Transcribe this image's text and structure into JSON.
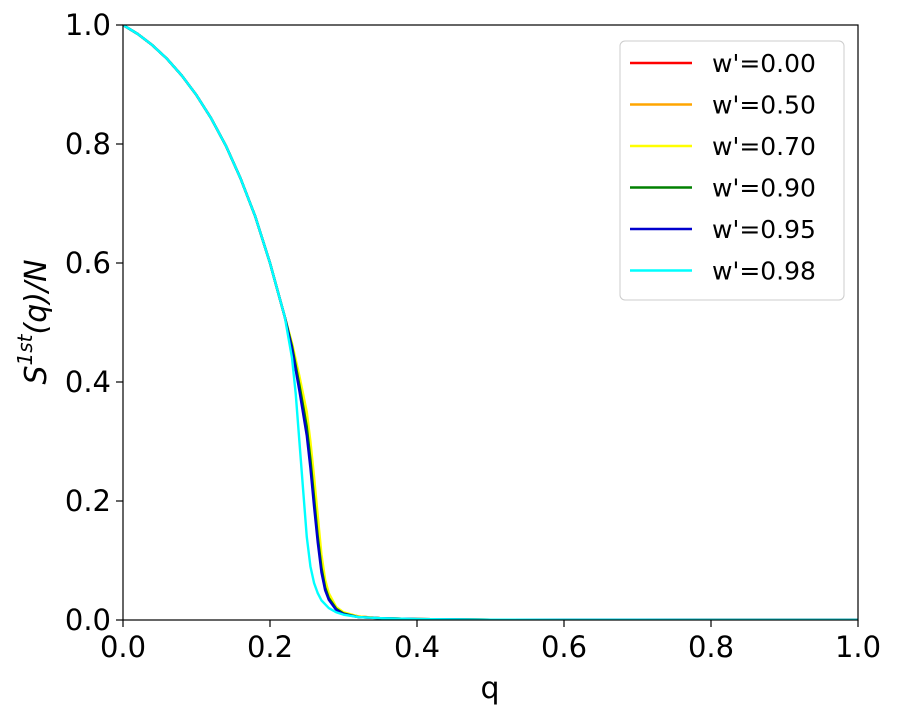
{
  "chart_data": {
    "type": "line",
    "xlabel": "q",
    "ylabel": {
      "base": "S",
      "sup": "1st",
      "rest": "(q)/N"
    },
    "xlim": [
      0.0,
      1.0
    ],
    "ylim": [
      0.0,
      1.0
    ],
    "xticks": [
      "0.0",
      "0.2",
      "0.4",
      "0.6",
      "0.8",
      "1.0"
    ],
    "yticks": [
      "0.0",
      "0.2",
      "0.4",
      "0.6",
      "0.8",
      "1.0"
    ],
    "grid": false,
    "legend_position": "top-right",
    "series": [
      {
        "name": "w'=0.00",
        "color": "#ff0000",
        "x": [
          0.0,
          0.02,
          0.04,
          0.06,
          0.08,
          0.1,
          0.12,
          0.14,
          0.16,
          0.18,
          0.2,
          0.22,
          0.23,
          0.24,
          0.25,
          0.255,
          0.26,
          0.265,
          0.27,
          0.275,
          0.28,
          0.29,
          0.3,
          0.32,
          0.35,
          0.4,
          0.5,
          0.6,
          0.8,
          1.0
        ],
        "y": [
          1.0,
          0.985,
          0.966,
          0.943,
          0.915,
          0.882,
          0.843,
          0.797,
          0.742,
          0.678,
          0.6,
          0.51,
          0.462,
          0.4,
          0.33,
          0.28,
          0.215,
          0.15,
          0.095,
          0.06,
          0.04,
          0.02,
          0.012,
          0.006,
          0.003,
          0.0015,
          0.0006,
          0.0003,
          0.0001,
          0.0
        ]
      },
      {
        "name": "w'=0.50",
        "color": "#ffa500",
        "x": [
          0.0,
          0.02,
          0.04,
          0.06,
          0.08,
          0.1,
          0.12,
          0.14,
          0.16,
          0.18,
          0.2,
          0.22,
          0.23,
          0.24,
          0.25,
          0.255,
          0.26,
          0.265,
          0.27,
          0.275,
          0.28,
          0.29,
          0.3,
          0.32,
          0.35,
          0.4,
          0.5,
          0.6,
          0.8,
          1.0
        ],
        "y": [
          1.0,
          0.985,
          0.966,
          0.943,
          0.915,
          0.882,
          0.843,
          0.797,
          0.742,
          0.678,
          0.6,
          0.51,
          0.463,
          0.405,
          0.34,
          0.29,
          0.225,
          0.16,
          0.1,
          0.063,
          0.042,
          0.021,
          0.012,
          0.006,
          0.003,
          0.0015,
          0.0006,
          0.0003,
          0.0001,
          0.0
        ]
      },
      {
        "name": "w'=0.70",
        "color": "#ffff00",
        "x": [
          0.0,
          0.02,
          0.04,
          0.06,
          0.08,
          0.1,
          0.12,
          0.14,
          0.16,
          0.18,
          0.2,
          0.22,
          0.23,
          0.24,
          0.25,
          0.255,
          0.26,
          0.265,
          0.27,
          0.275,
          0.28,
          0.29,
          0.3,
          0.32,
          0.35,
          0.4,
          0.5,
          0.6,
          0.8,
          1.0
        ],
        "y": [
          1.0,
          0.985,
          0.966,
          0.943,
          0.915,
          0.882,
          0.843,
          0.797,
          0.742,
          0.678,
          0.6,
          0.51,
          0.465,
          0.41,
          0.35,
          0.3,
          0.24,
          0.175,
          0.11,
          0.068,
          0.045,
          0.022,
          0.013,
          0.006,
          0.003,
          0.0015,
          0.0006,
          0.0003,
          0.0001,
          0.0
        ]
      },
      {
        "name": "w'=0.90",
        "color": "#008000",
        "x": [
          0.0,
          0.02,
          0.04,
          0.06,
          0.08,
          0.1,
          0.12,
          0.14,
          0.16,
          0.18,
          0.2,
          0.22,
          0.23,
          0.24,
          0.25,
          0.255,
          0.26,
          0.265,
          0.27,
          0.275,
          0.28,
          0.29,
          0.3,
          0.32,
          0.35,
          0.4,
          0.5,
          0.6,
          0.8,
          1.0
        ],
        "y": [
          1.0,
          0.985,
          0.966,
          0.943,
          0.915,
          0.882,
          0.843,
          0.797,
          0.742,
          0.678,
          0.6,
          0.51,
          0.46,
          0.395,
          0.325,
          0.27,
          0.205,
          0.14,
          0.088,
          0.055,
          0.037,
          0.019,
          0.011,
          0.005,
          0.003,
          0.0015,
          0.0006,
          0.0003,
          0.0001,
          0.0
        ]
      },
      {
        "name": "w'=0.95",
        "color": "#0000cd",
        "x": [
          0.0,
          0.02,
          0.04,
          0.06,
          0.08,
          0.1,
          0.12,
          0.14,
          0.16,
          0.18,
          0.2,
          0.22,
          0.23,
          0.24,
          0.25,
          0.255,
          0.26,
          0.265,
          0.27,
          0.275,
          0.28,
          0.29,
          0.3,
          0.32,
          0.35,
          0.4,
          0.5,
          0.6,
          0.8,
          1.0
        ],
        "y": [
          1.0,
          0.985,
          0.966,
          0.943,
          0.915,
          0.882,
          0.843,
          0.797,
          0.742,
          0.678,
          0.6,
          0.51,
          0.455,
          0.385,
          0.31,
          0.255,
          0.19,
          0.13,
          0.08,
          0.05,
          0.034,
          0.017,
          0.01,
          0.005,
          0.003,
          0.0015,
          0.0006,
          0.0003,
          0.0001,
          0.0
        ]
      },
      {
        "name": "w'=0.98",
        "color": "#00ffff",
        "x": [
          0.0,
          0.02,
          0.04,
          0.06,
          0.08,
          0.1,
          0.12,
          0.14,
          0.16,
          0.18,
          0.2,
          0.22,
          0.23,
          0.235,
          0.24,
          0.245,
          0.25,
          0.255,
          0.26,
          0.265,
          0.27,
          0.28,
          0.29,
          0.3,
          0.32,
          0.35,
          0.4,
          0.5,
          0.6,
          0.8,
          1.0
        ],
        "y": [
          1.0,
          0.985,
          0.966,
          0.943,
          0.915,
          0.882,
          0.843,
          0.797,
          0.742,
          0.678,
          0.6,
          0.51,
          0.44,
          0.38,
          0.3,
          0.22,
          0.14,
          0.09,
          0.062,
          0.045,
          0.033,
          0.02,
          0.013,
          0.009,
          0.005,
          0.003,
          0.0015,
          0.0006,
          0.0003,
          0.0001,
          0.0
        ]
      }
    ]
  }
}
